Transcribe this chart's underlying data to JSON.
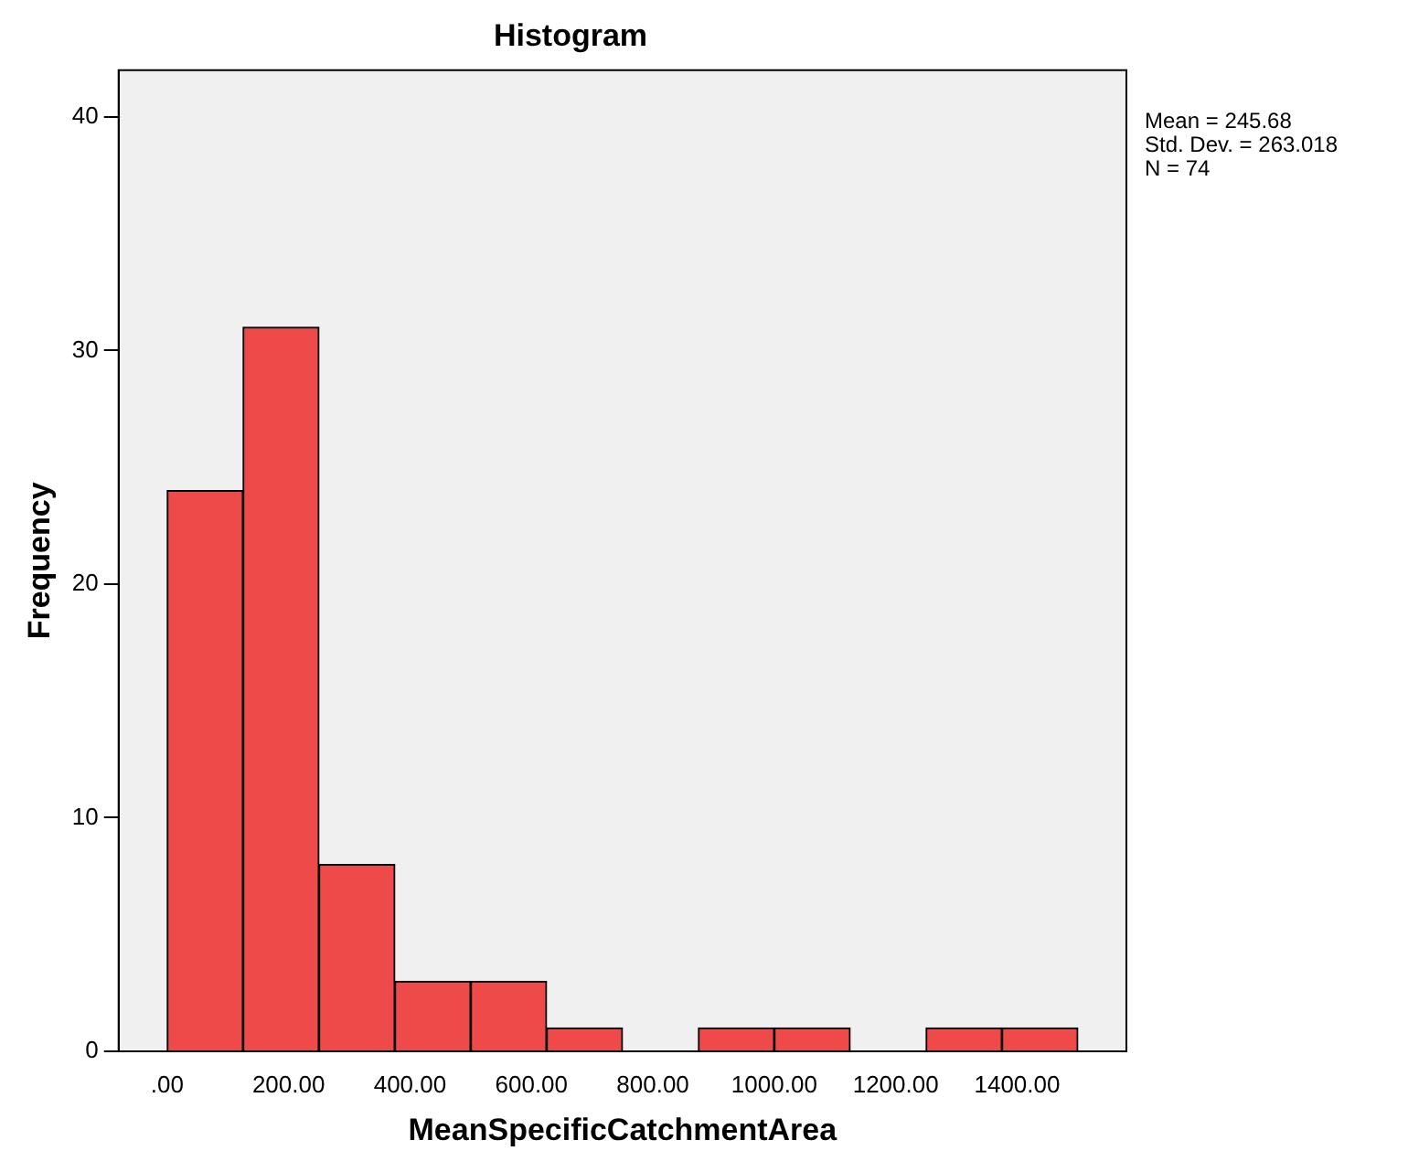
{
  "chart_data": {
    "type": "histogram",
    "title": "Histogram",
    "xlabel": "MeanSpecificCatchmentArea",
    "ylabel": "Frequency",
    "bins": [
      0,
      125,
      250,
      375,
      500,
      625,
      750,
      875,
      1000,
      1125,
      1250,
      1375,
      1500
    ],
    "values": [
      24,
      31,
      8,
      3,
      3,
      1,
      0,
      1,
      1,
      0,
      1,
      1
    ],
    "color": "#ef4a4a",
    "xlim": [
      -80,
      1580
    ],
    "xticks": [
      {
        "value": 0,
        "label": ".00"
      },
      {
        "value": 200,
        "label": "200.00"
      },
      {
        "value": 400,
        "label": "400.00"
      },
      {
        "value": 600,
        "label": "600.00"
      },
      {
        "value": 800,
        "label": "800.00"
      },
      {
        "value": 1000,
        "label": "1000.00"
      },
      {
        "value": 1200,
        "label": "1200.00"
      },
      {
        "value": 1400,
        "label": "1400.00"
      }
    ],
    "ylim": [
      0,
      42
    ],
    "yticks": [
      0,
      10,
      20,
      30,
      40
    ],
    "grid": false,
    "legend": false,
    "annotations": [
      "Mean = 245.68",
      "Std. Dev. = 263.018",
      "N = 74"
    ]
  }
}
